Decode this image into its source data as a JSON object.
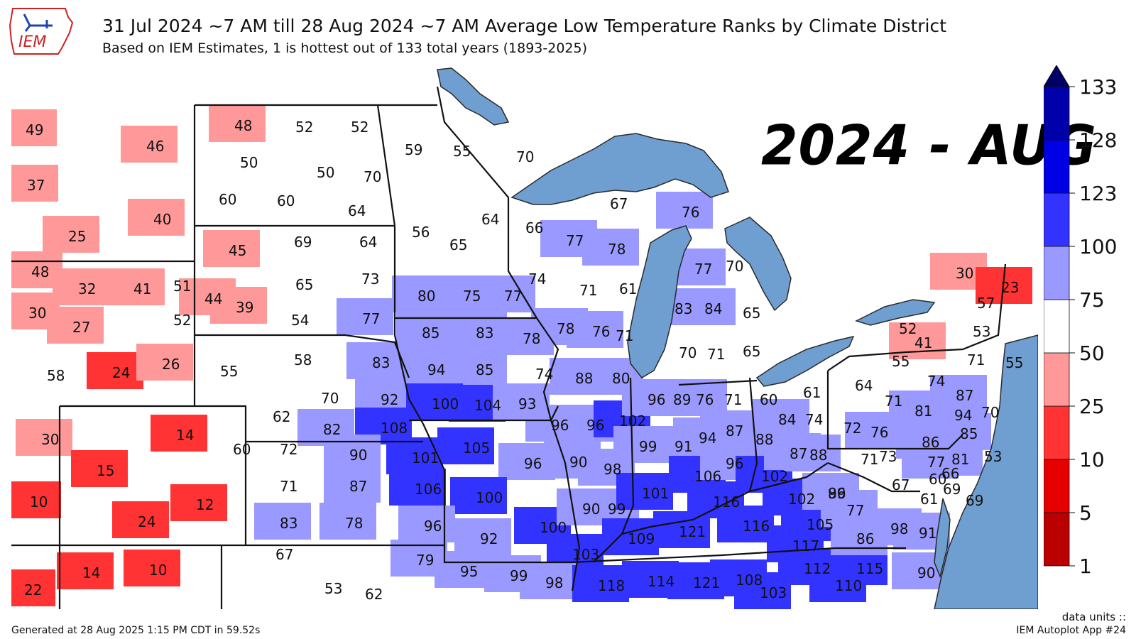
{
  "header": {
    "title": "31 Jul 2024 ~7 AM till 28 Aug 2024 ~7 AM Average Low Temperature Ranks by Climate District",
    "subtitle": "Based on IEM Estimates, 1 is hottest out of 133 total years (1893-2025)"
  },
  "logo": {
    "text": "IEM",
    "icon": "iowa-state-outline-icon",
    "color": "#cc2222"
  },
  "overlay": {
    "label": "2024 - AUG"
  },
  "legend": {
    "ticks": [
      "1",
      "5",
      "10",
      "25",
      "50",
      "75",
      "100",
      "123",
      "128",
      "133"
    ],
    "colors": [
      "#bb0000",
      "#e60000",
      "#ff3333",
      "#ff9999",
      "#ffffff",
      "#9999ff",
      "#3333ff",
      "#0000e6",
      "#0000aa",
      "#000066"
    ]
  },
  "footer": {
    "generated": "Generated at 28 Aug 2025 1:15 PM CDT in 59.52s",
    "units": "data units ::",
    "app": "IEM Autoplot App #24"
  },
  "colors": {
    "water": "#6f9ed0",
    "border": "#222222"
  },
  "districts": [
    {
      "v": "49"
    },
    {
      "v": "46"
    },
    {
      "v": "37"
    },
    {
      "v": "40"
    },
    {
      "v": "25"
    },
    {
      "v": "48"
    },
    {
      "v": "32"
    },
    {
      "v": "41"
    },
    {
      "v": "51"
    },
    {
      "v": "30"
    },
    {
      "v": "27"
    },
    {
      "v": "52"
    },
    {
      "v": "58"
    },
    {
      "v": "24"
    },
    {
      "v": "26"
    },
    {
      "v": "30"
    },
    {
      "v": "14"
    },
    {
      "v": "60"
    },
    {
      "v": "15"
    },
    {
      "v": "10"
    },
    {
      "v": "12"
    },
    {
      "v": "24"
    },
    {
      "v": "22"
    },
    {
      "v": "14"
    },
    {
      "v": "10"
    },
    {
      "v": "48"
    },
    {
      "v": "52"
    },
    {
      "v": "52"
    },
    {
      "v": "50"
    },
    {
      "v": "50"
    },
    {
      "v": "60"
    },
    {
      "v": "60"
    },
    {
      "v": "70"
    },
    {
      "v": "64"
    },
    {
      "v": "45"
    },
    {
      "v": "69"
    },
    {
      "v": "64"
    },
    {
      "v": "44"
    },
    {
      "v": "39"
    },
    {
      "v": "65"
    },
    {
      "v": "73"
    },
    {
      "v": "54"
    },
    {
      "v": "55"
    },
    {
      "v": "58"
    },
    {
      "v": "70"
    },
    {
      "v": "62"
    },
    {
      "v": "82"
    },
    {
      "v": "72"
    },
    {
      "v": "71"
    },
    {
      "v": "83"
    },
    {
      "v": "67"
    },
    {
      "v": "53"
    },
    {
      "v": "59"
    },
    {
      "v": "55"
    },
    {
      "v": "70"
    },
    {
      "v": "56"
    },
    {
      "v": "65"
    },
    {
      "v": "64"
    },
    {
      "v": "66"
    },
    {
      "v": "67"
    },
    {
      "v": "76"
    },
    {
      "v": "77"
    },
    {
      "v": "78"
    },
    {
      "v": "74"
    },
    {
      "v": "71"
    },
    {
      "v": "61"
    },
    {
      "v": "77"
    },
    {
      "v": "70"
    },
    {
      "v": "80"
    },
    {
      "v": "75"
    },
    {
      "v": "77"
    },
    {
      "v": "77"
    },
    {
      "v": "85"
    },
    {
      "v": "83"
    },
    {
      "v": "78"
    },
    {
      "v": "78"
    },
    {
      "v": "76"
    },
    {
      "v": "71"
    },
    {
      "v": "83"
    },
    {
      "v": "84"
    },
    {
      "v": "65"
    },
    {
      "v": "70"
    },
    {
      "v": "71"
    },
    {
      "v": "65"
    },
    {
      "v": "83"
    },
    {
      "v": "94"
    },
    {
      "v": "85"
    },
    {
      "v": "74"
    },
    {
      "v": "88"
    },
    {
      "v": "80"
    },
    {
      "v": "92"
    },
    {
      "v": "100"
    },
    {
      "v": "104"
    },
    {
      "v": "93"
    },
    {
      "v": "108"
    },
    {
      "v": "96"
    },
    {
      "v": "96"
    },
    {
      "v": "102"
    },
    {
      "v": "96"
    },
    {
      "v": "89"
    },
    {
      "v": "76"
    },
    {
      "v": "71"
    },
    {
      "v": "60"
    },
    {
      "v": "61"
    },
    {
      "v": "90"
    },
    {
      "v": "101"
    },
    {
      "v": "105"
    },
    {
      "v": "87"
    },
    {
      "v": "106"
    },
    {
      "v": "96"
    },
    {
      "v": "100"
    },
    {
      "v": "90"
    },
    {
      "v": "98"
    },
    {
      "v": "99"
    },
    {
      "v": "91"
    },
    {
      "v": "94"
    },
    {
      "v": "87"
    },
    {
      "v": "88"
    },
    {
      "v": "84"
    },
    {
      "v": "74"
    },
    {
      "v": "78"
    },
    {
      "v": "96"
    },
    {
      "v": "92"
    },
    {
      "v": "100"
    },
    {
      "v": "90"
    },
    {
      "v": "99"
    },
    {
      "v": "101"
    },
    {
      "v": "106"
    },
    {
      "v": "96"
    },
    {
      "v": "102"
    },
    {
      "v": "87"
    },
    {
      "v": "88"
    },
    {
      "v": "79"
    },
    {
      "v": "103"
    },
    {
      "v": "109"
    },
    {
      "v": "121"
    },
    {
      "v": "116"
    },
    {
      "v": "116"
    },
    {
      "v": "102"
    },
    {
      "v": "89"
    },
    {
      "v": "95"
    },
    {
      "v": "99"
    },
    {
      "v": "98"
    },
    {
      "v": "118"
    },
    {
      "v": "114"
    },
    {
      "v": "121"
    },
    {
      "v": "108"
    },
    {
      "v": "103"
    },
    {
      "v": "105"
    },
    {
      "v": "96"
    },
    {
      "v": "117"
    },
    {
      "v": "112"
    },
    {
      "v": "115"
    },
    {
      "v": "110"
    },
    {
      "v": "77"
    },
    {
      "v": "86"
    },
    {
      "v": "98"
    },
    {
      "v": "91"
    },
    {
      "v": "90"
    },
    {
      "v": "30"
    },
    {
      "v": "23"
    },
    {
      "v": "57"
    },
    {
      "v": "52"
    },
    {
      "v": "53"
    },
    {
      "v": "41"
    },
    {
      "v": "55"
    },
    {
      "v": "71"
    },
    {
      "v": "55"
    },
    {
      "v": "64"
    },
    {
      "v": "74"
    },
    {
      "v": "87"
    },
    {
      "v": "71"
    },
    {
      "v": "81"
    },
    {
      "v": "94"
    },
    {
      "v": "70"
    },
    {
      "v": "72"
    },
    {
      "v": "76"
    },
    {
      "v": "86"
    },
    {
      "v": "85"
    },
    {
      "v": "71"
    },
    {
      "v": "73"
    },
    {
      "v": "77"
    },
    {
      "v": "81"
    },
    {
      "v": "53"
    },
    {
      "v": "60"
    },
    {
      "v": "66"
    },
    {
      "v": "67"
    },
    {
      "v": "61"
    },
    {
      "v": "69"
    },
    {
      "v": "69"
    },
    {
      "v": "62"
    }
  ]
}
